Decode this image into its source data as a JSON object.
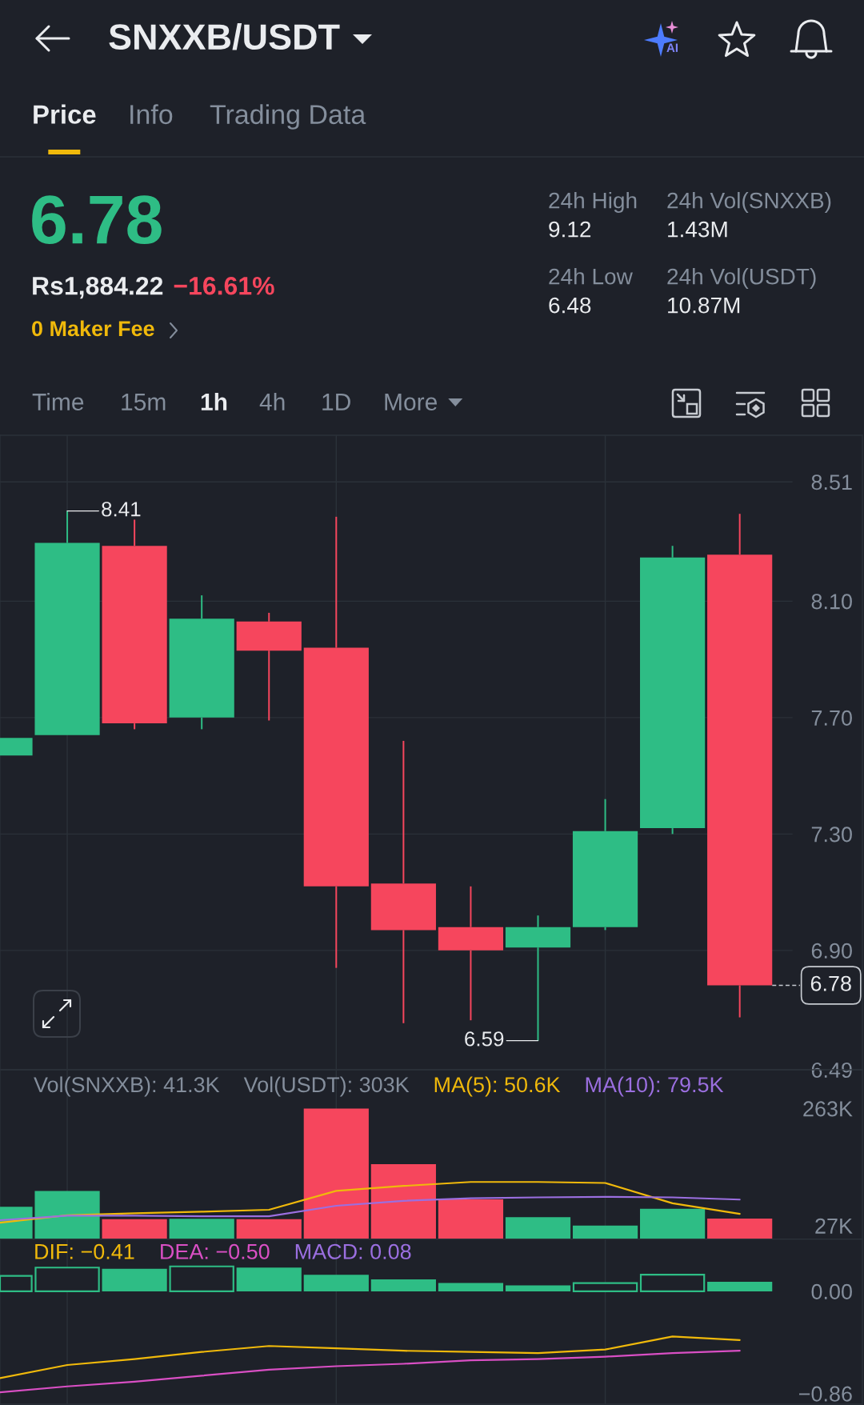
{
  "chart_data": [
    {
      "type": "other",
      "title": "SNXXB/USDT",
      "annotations": [
        "Price",
        "Info",
        "Trading Data",
        "6.78",
        "24h High",
        "9.12",
        "24h Vol(SNXXB)",
        "1.43M",
        "Rs1,884.22",
        "−16.61%",
        "24h Low",
        "6.48",
        "24h Vol(USDT)",
        "10.87M",
        "0 Maker Fee",
        "Time",
        "15m",
        "1h",
        "4h",
        "1D",
        "More",
        "AI"
      ]
    },
    {
      "type": "candlestick",
      "categories": [
        null,
        null,
        null,
        null,
        null,
        null,
        null,
        null,
        null,
        null,
        null,
        null
      ],
      "ohlc": [
        [
          7.57,
          7.63,
          7.57,
          7.63
        ],
        [
          7.64,
          8.41,
          7.64,
          8.3
        ],
        [
          8.29,
          8.38,
          7.66,
          7.68
        ],
        [
          7.7,
          8.12,
          7.66,
          8.04
        ],
        [
          8.03,
          8.06,
          7.69,
          7.93
        ],
        [
          7.94,
          8.39,
          6.84,
          7.12
        ],
        [
          7.13,
          7.62,
          6.65,
          6.97
        ],
        [
          6.98,
          7.12,
          6.66,
          6.9
        ],
        [
          6.91,
          7.02,
          6.59,
          6.98
        ],
        [
          6.98,
          7.42,
          6.97,
          7.31
        ],
        [
          7.32,
          8.29,
          7.3,
          8.25
        ],
        [
          8.26,
          8.4,
          6.67,
          6.78
        ]
      ],
      "colors": [
        "#2ebd85",
        "#2ebd85",
        "#f6465d",
        "#2ebd85",
        "#f6465d",
        "#f6465d",
        "#f6465d",
        "#f6465d",
        "#2ebd85",
        "#2ebd85",
        "#2ebd85",
        "#f6465d"
      ],
      "ylim": [
        6.49,
        8.67
      ],
      "yticks": [
        6.49,
        {
          "value": 6.9,
          "label": "6.90"
        },
        {
          "value": 7.3,
          "label": "7.30"
        },
        {
          "value": 7.7,
          "label": "7.70"
        },
        {
          "value": 8.1,
          "label": "8.10"
        },
        8.51
      ],
      "grid": true,
      "tick_labels": "y",
      "annotations": [
        "8.41",
        "6.59"
      ],
      "ref_lines": [
        {
          "axis": "y",
          "value": 6.78,
          "label": "6.78",
          "line_style": "dashed"
        }
      ]
    },
    {
      "type": "bar",
      "categories": [
        null,
        null,
        null,
        null,
        null,
        null,
        null,
        null,
        null,
        null,
        null,
        null
      ],
      "series": [
        {
          "type": "bar",
          "values": [
            65,
            97,
            40,
            41,
            40,
            263,
            151,
            80,
            44,
            27,
            61,
            41.3
          ],
          "colors": [
            "#2ebd85",
            "#2ebd85",
            "#f6465d",
            "#2ebd85",
            "#f6465d",
            "#f6465d",
            "#f6465d",
            "#f6465d",
            "#2ebd85",
            "#2ebd85",
            "#2ebd85",
            "#f6465d"
          ]
        },
        {
          "type": "line",
          "name": "MA(5): 50.6K",
          "color": "#f0b90b",
          "values": [
            33,
            48,
            52,
            55,
            59,
            97,
            107,
            115,
            115,
            113,
            72,
            50.6
          ]
        },
        {
          "type": "line",
          "name": "MA(10): 79.5K",
          "color": "#9b6fe0",
          "values": [
            38,
            47,
            47,
            46,
            46,
            67,
            77,
            82,
            84,
            85,
            84,
            79.5
          ]
        }
      ],
      "ylim": [
        0,
        341
      ],
      "yticks": [
        {
          "value": 27,
          "label": "27K"
        },
        {
          "value": 263,
          "label": "263K"
        }
      ],
      "grid": "x",
      "tick_labels": "y",
      "legend": "top right",
      "annotations": [
        "Vol(SNXXB): 41.3K",
        "Vol(USDT): 303K"
      ]
    },
    {
      "type": "bar",
      "categories": [
        null,
        null,
        null,
        null,
        null,
        null,
        null,
        null,
        null,
        null,
        null,
        null
      ],
      "series": [
        {
          "type": "bar",
          "values": [
            0.13,
            0.2,
            0.19,
            0.21,
            0.2,
            0.14,
            0.1,
            0.07,
            0.05,
            0.07,
            0.14,
            0.08
          ],
          "colors": [
            "#2ebd85",
            "#2ebd85",
            "#2ebd85",
            "#2ebd85",
            "#2ebd85",
            "#2ebd85",
            "#2ebd85",
            "#2ebd85",
            "#2ebd85",
            "#2ebd85",
            "#2ebd85",
            "#2ebd85"
          ]
        },
        {
          "type": "line",
          "name": "DIF: −0.41",
          "color": "#f0b90b",
          "values": [
            -0.73,
            -0.62,
            -0.57,
            -0.51,
            -0.46,
            -0.48,
            -0.5,
            -0.51,
            -0.52,
            -0.49,
            -0.38,
            -0.41
          ]
        },
        {
          "type": "line",
          "name": "DEA: −0.50",
          "color": "#d94fc4",
          "values": [
            -0.85,
            -0.8,
            -0.76,
            -0.71,
            -0.66,
            -0.63,
            -0.61,
            -0.58,
            -0.57,
            -0.55,
            -0.52,
            -0.5
          ]
        }
      ],
      "ylim": [
        -0.95,
        0.44
      ],
      "yticks": [
        {
          "value": -0.86,
          "label": "−0.86"
        },
        {
          "value": 0,
          "label": "0.00"
        }
      ],
      "grid": "x",
      "tick_labels": "y",
      "legend": "top left",
      "annotations": [
        "MACD: 0.08"
      ]
    }
  ]
}
